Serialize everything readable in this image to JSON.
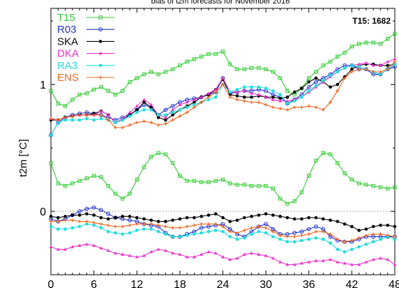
{
  "chart_data": {
    "type": "line",
    "title": "",
    "top_text": "bias of t2m forecasts for November 2016",
    "ylabel": "t2m [°C]",
    "xlabel": "",
    "xlim": [
      0,
      48
    ],
    "ylim": [
      -0.5,
      1.6
    ],
    "xticks": [
      0,
      6,
      12,
      18,
      24,
      30,
      36,
      42,
      48
    ],
    "yticks": [
      0,
      1
    ],
    "zero_line": true,
    "legend_position": "top-left",
    "annotation": "T15: 1682",
    "series": [
      {
        "name": "T15",
        "color": "#33cc33",
        "marker": "square-open",
        "upper": [
          0.95,
          0.85,
          0.83,
          0.88,
          0.92,
          0.93,
          0.96,
          0.98,
          0.95,
          0.92,
          0.95,
          1.02,
          1.05,
          1.08,
          1.1,
          1.08,
          1.1,
          1.12,
          1.15,
          1.18,
          1.2,
          1.22,
          1.24,
          1.24,
          1.26,
          1.16,
          1.12,
          1.12,
          1.13,
          1.13,
          1.12,
          1.1,
          1.05,
          0.95,
          0.92,
          0.97,
          1.05,
          1.1,
          1.15,
          1.18,
          1.22,
          1.25,
          1.3,
          1.32,
          1.33,
          1.33,
          1.32,
          1.36,
          1.4
        ],
        "lower": [
          0.38,
          0.22,
          0.2,
          0.22,
          0.24,
          0.26,
          0.28,
          0.27,
          0.2,
          0.14,
          0.1,
          0.14,
          0.25,
          0.35,
          0.43,
          0.46,
          0.45,
          0.38,
          0.28,
          0.24,
          0.24,
          0.23,
          0.23,
          0.24,
          0.25,
          0.22,
          0.21,
          0.21,
          0.2,
          0.2,
          0.2,
          0.18,
          0.1,
          0.06,
          0.08,
          0.15,
          0.28,
          0.4,
          0.46,
          0.45,
          0.38,
          0.3,
          0.25,
          0.22,
          0.21,
          0.2,
          0.19,
          0.18,
          0.19
        ]
      },
      {
        "name": "R03",
        "color": "#2233cc",
        "marker": "circle-open",
        "upper": [
          0.6,
          0.7,
          0.74,
          0.76,
          0.77,
          0.78,
          0.77,
          0.76,
          0.74,
          0.72,
          0.74,
          0.76,
          0.8,
          0.84,
          0.82,
          0.76,
          0.8,
          0.83,
          0.86,
          0.88,
          0.89,
          0.9,
          0.92,
          0.94,
          1.05,
          0.93,
          0.94,
          0.95,
          0.95,
          0.96,
          0.95,
          0.92,
          0.9,
          0.85,
          0.88,
          0.92,
          0.98,
          1.02,
          1.05,
          1.08,
          1.12,
          1.15,
          1.15,
          1.12,
          1.12,
          1.08,
          1.08,
          1.12,
          1.14
        ],
        "lower": [
          -0.06,
          -0.08,
          -0.06,
          -0.03,
          0.0,
          0.02,
          0.03,
          0.01,
          -0.02,
          -0.05,
          -0.06,
          -0.07,
          -0.08,
          -0.1,
          -0.11,
          -0.12,
          -0.17,
          -0.2,
          -0.2,
          -0.18,
          -0.16,
          -0.13,
          -0.12,
          -0.11,
          -0.1,
          -0.14,
          -0.18,
          -0.2,
          -0.16,
          -0.12,
          -0.1,
          -0.14,
          -0.18,
          -0.18,
          -0.17,
          -0.16,
          -0.14,
          -0.12,
          -0.14,
          -0.2,
          -0.23,
          -0.24,
          -0.24,
          -0.22,
          -0.2,
          -0.2,
          -0.2,
          -0.2,
          -0.2
        ]
      },
      {
        "name": "SKA",
        "color": "#000000",
        "marker": "filled-circle",
        "upper": [
          0.72,
          0.72,
          0.74,
          0.75,
          0.76,
          0.76,
          0.77,
          0.79,
          0.76,
          0.7,
          0.72,
          0.76,
          0.8,
          0.86,
          0.82,
          0.74,
          0.72,
          0.76,
          0.8,
          0.83,
          0.86,
          0.9,
          0.92,
          0.96,
          1.04,
          0.92,
          0.91,
          0.9,
          0.9,
          0.91,
          0.9,
          0.9,
          0.89,
          0.9,
          0.94,
          0.97,
          1.02,
          1.05,
          1.02,
          0.98,
          1.0,
          1.06,
          1.12,
          1.15,
          1.16,
          1.16,
          1.15,
          1.15,
          1.16
        ],
        "lower": [
          -0.04,
          -0.05,
          -0.04,
          -0.03,
          -0.03,
          -0.02,
          -0.03,
          -0.05,
          -0.06,
          -0.05,
          -0.04,
          -0.04,
          -0.05,
          -0.06,
          -0.07,
          -0.08,
          -0.08,
          -0.07,
          -0.06,
          -0.05,
          -0.05,
          -0.04,
          -0.03,
          -0.02,
          -0.05,
          -0.08,
          -0.07,
          -0.05,
          -0.04,
          -0.03,
          -0.02,
          -0.03,
          -0.04,
          -0.05,
          -0.06,
          -0.06,
          -0.05,
          -0.05,
          -0.06,
          -0.07,
          -0.08,
          -0.1,
          -0.12,
          -0.15,
          -0.14,
          -0.12,
          -0.11,
          -0.11,
          -0.12
        ]
      },
      {
        "name": "DKA",
        "color": "#ee33cc",
        "marker": "triangle",
        "upper": [
          0.73,
          0.72,
          0.74,
          0.75,
          0.76,
          0.76,
          0.76,
          0.79,
          0.76,
          0.7,
          0.73,
          0.78,
          0.83,
          0.88,
          0.84,
          0.76,
          0.74,
          0.8,
          0.84,
          0.86,
          0.88,
          0.9,
          0.93,
          0.96,
          1.05,
          0.94,
          0.94,
          0.95,
          0.93,
          0.92,
          0.9,
          0.88,
          0.87,
          0.87,
          0.88,
          0.9,
          0.94,
          0.98,
          1.02,
          1.06,
          1.1,
          1.13,
          1.15,
          1.16,
          1.17,
          1.15,
          1.15,
          1.18,
          1.2
        ],
        "lower": [
          -0.28,
          -0.3,
          -0.3,
          -0.28,
          -0.27,
          -0.26,
          -0.27,
          -0.29,
          -0.31,
          -0.33,
          -0.34,
          -0.35,
          -0.36,
          -0.35,
          -0.32,
          -0.3,
          -0.31,
          -0.33,
          -0.34,
          -0.36,
          -0.36,
          -0.34,
          -0.32,
          -0.33,
          -0.36,
          -0.38,
          -0.37,
          -0.34,
          -0.33,
          -0.34,
          -0.35,
          -0.37,
          -0.4,
          -0.42,
          -0.42,
          -0.41,
          -0.4,
          -0.39,
          -0.39,
          -0.38,
          -0.4,
          -0.41,
          -0.42,
          -0.42,
          -0.4,
          -0.38,
          -0.37,
          -0.38,
          -0.42
        ]
      },
      {
        "name": "RA3",
        "color": "#22dddd",
        "marker": "filled-circle",
        "upper": [
          0.6,
          0.7,
          0.72,
          0.72,
          0.72,
          0.73,
          0.72,
          0.73,
          0.72,
          0.7,
          0.72,
          0.75,
          0.78,
          0.8,
          0.8,
          0.76,
          0.76,
          0.78,
          0.8,
          0.82,
          0.84,
          0.86,
          0.88,
          0.9,
          1.0,
          0.94,
          0.96,
          0.98,
          0.98,
          0.98,
          0.97,
          0.95,
          0.92,
          0.85,
          0.87,
          0.9,
          0.95,
          0.99,
          1.03,
          1.07,
          1.1,
          1.13,
          1.15,
          1.14,
          1.12,
          1.1,
          1.08,
          1.12,
          1.16
        ],
        "lower": [
          -0.12,
          -0.14,
          -0.14,
          -0.13,
          -0.12,
          -0.1,
          -0.11,
          -0.13,
          -0.16,
          -0.17,
          -0.18,
          -0.17,
          -0.15,
          -0.14,
          -0.14,
          -0.16,
          -0.18,
          -0.2,
          -0.2,
          -0.19,
          -0.18,
          -0.17,
          -0.16,
          -0.15,
          -0.16,
          -0.2,
          -0.22,
          -0.21,
          -0.18,
          -0.16,
          -0.17,
          -0.2,
          -0.22,
          -0.24,
          -0.24,
          -0.23,
          -0.22,
          -0.21,
          -0.22,
          -0.25,
          -0.3,
          -0.32,
          -0.3,
          -0.28,
          -0.26,
          -0.24,
          -0.22,
          -0.2,
          -0.22
        ]
      },
      {
        "name": "ENS",
        "color": "#ee6622",
        "marker": "plus",
        "upper": [
          0.73,
          0.72,
          0.74,
          0.75,
          0.76,
          0.76,
          0.76,
          0.76,
          0.72,
          0.66,
          0.66,
          0.68,
          0.7,
          0.71,
          0.7,
          0.68,
          0.69,
          0.72,
          0.75,
          0.78,
          0.82,
          0.86,
          0.9,
          0.94,
          1.0,
          0.9,
          0.88,
          0.87,
          0.86,
          0.86,
          0.84,
          0.82,
          0.81,
          0.8,
          0.82,
          0.82,
          0.83,
          0.82,
          0.8,
          0.86,
          0.95,
          1.05,
          1.1,
          1.12,
          1.12,
          1.1,
          1.1,
          1.12,
          1.18
        ],
        "lower": [
          -0.08,
          -0.08,
          -0.07,
          -0.07,
          -0.08,
          -0.08,
          -0.09,
          -0.1,
          -0.11,
          -0.12,
          -0.12,
          -0.11,
          -0.1,
          -0.1,
          -0.1,
          -0.11,
          -0.12,
          -0.13,
          -0.13,
          -0.12,
          -0.11,
          -0.1,
          -0.1,
          -0.1,
          -0.12,
          -0.16,
          -0.17,
          -0.15,
          -0.13,
          -0.12,
          -0.13,
          -0.16,
          -0.19,
          -0.2,
          -0.2,
          -0.19,
          -0.18,
          -0.16,
          -0.16,
          -0.18,
          -0.22,
          -0.24,
          -0.23,
          -0.21,
          -0.19,
          -0.18,
          -0.18,
          -0.19,
          -0.2
        ]
      }
    ]
  }
}
